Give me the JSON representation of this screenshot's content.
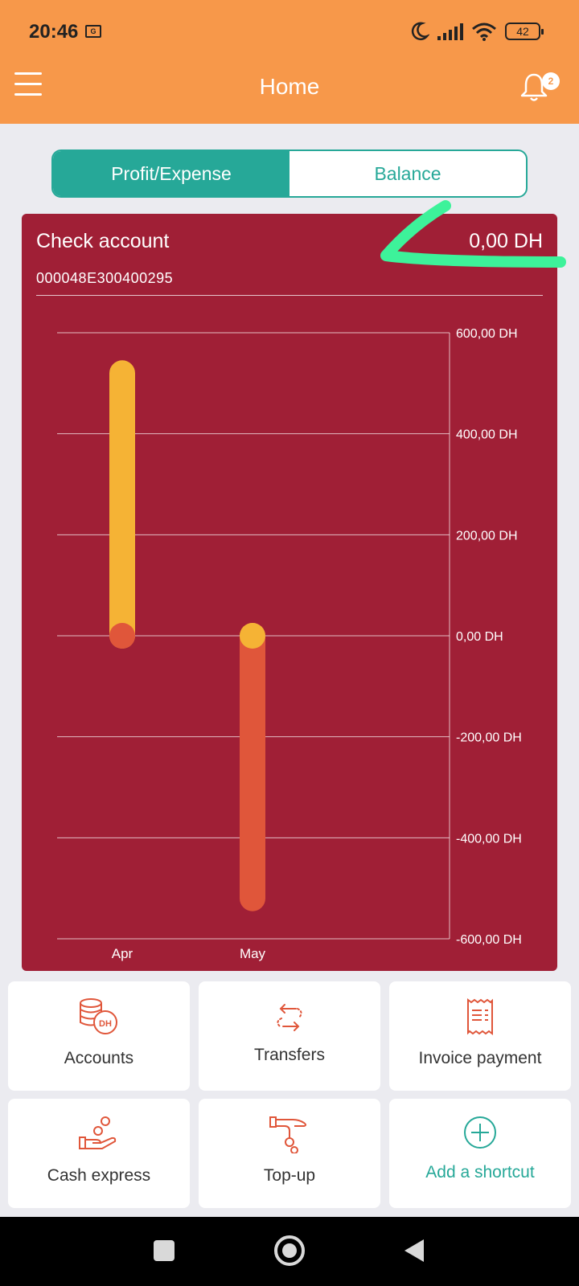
{
  "status_bar": {
    "time": "20:46",
    "battery": "42"
  },
  "header": {
    "title": "Home",
    "notification_count": "2"
  },
  "segment": {
    "tabs": [
      "Profit/Expense",
      "Balance"
    ],
    "active_index": 0
  },
  "account": {
    "name": "Check account",
    "amount": "0,00 DH",
    "number": "000048E300400295"
  },
  "colors": {
    "accent": "#26a898",
    "header": "#f7984a",
    "card": "#a01f36",
    "profit": "#f5b335",
    "expense": "#e0563a"
  },
  "chart_data": {
    "type": "bar",
    "categories": [
      "Apr",
      "May"
    ],
    "series": [
      {
        "values": [
          520,
          0
        ]
      },
      {
        "values": [
          0,
          -520
        ]
      }
    ],
    "ylim": [
      -600,
      600
    ],
    "yticks": [
      600,
      400,
      200,
      0,
      -200,
      -400,
      -600
    ],
    "ytick_labels": [
      "600,00 DH",
      "400,00 DH",
      "200,00 DH",
      "0,00 DH",
      "-200,00 DH",
      "-400,00 DH",
      "-600,00 DH"
    ],
    "grid": true,
    "yaxis_position": "right"
  },
  "shortcuts": [
    {
      "label": "Accounts",
      "icon": "coins-icon"
    },
    {
      "label": "Transfers",
      "icon": "transfer-arrows-icon"
    },
    {
      "label": "Invoice payment",
      "icon": "receipt-icon"
    },
    {
      "label": "Cash express",
      "icon": "cash-hand-icon"
    },
    {
      "label": "Top-up",
      "icon": "topup-hand-icon"
    },
    {
      "label": "Add a shortcut",
      "icon": "plus-circle-icon"
    }
  ]
}
